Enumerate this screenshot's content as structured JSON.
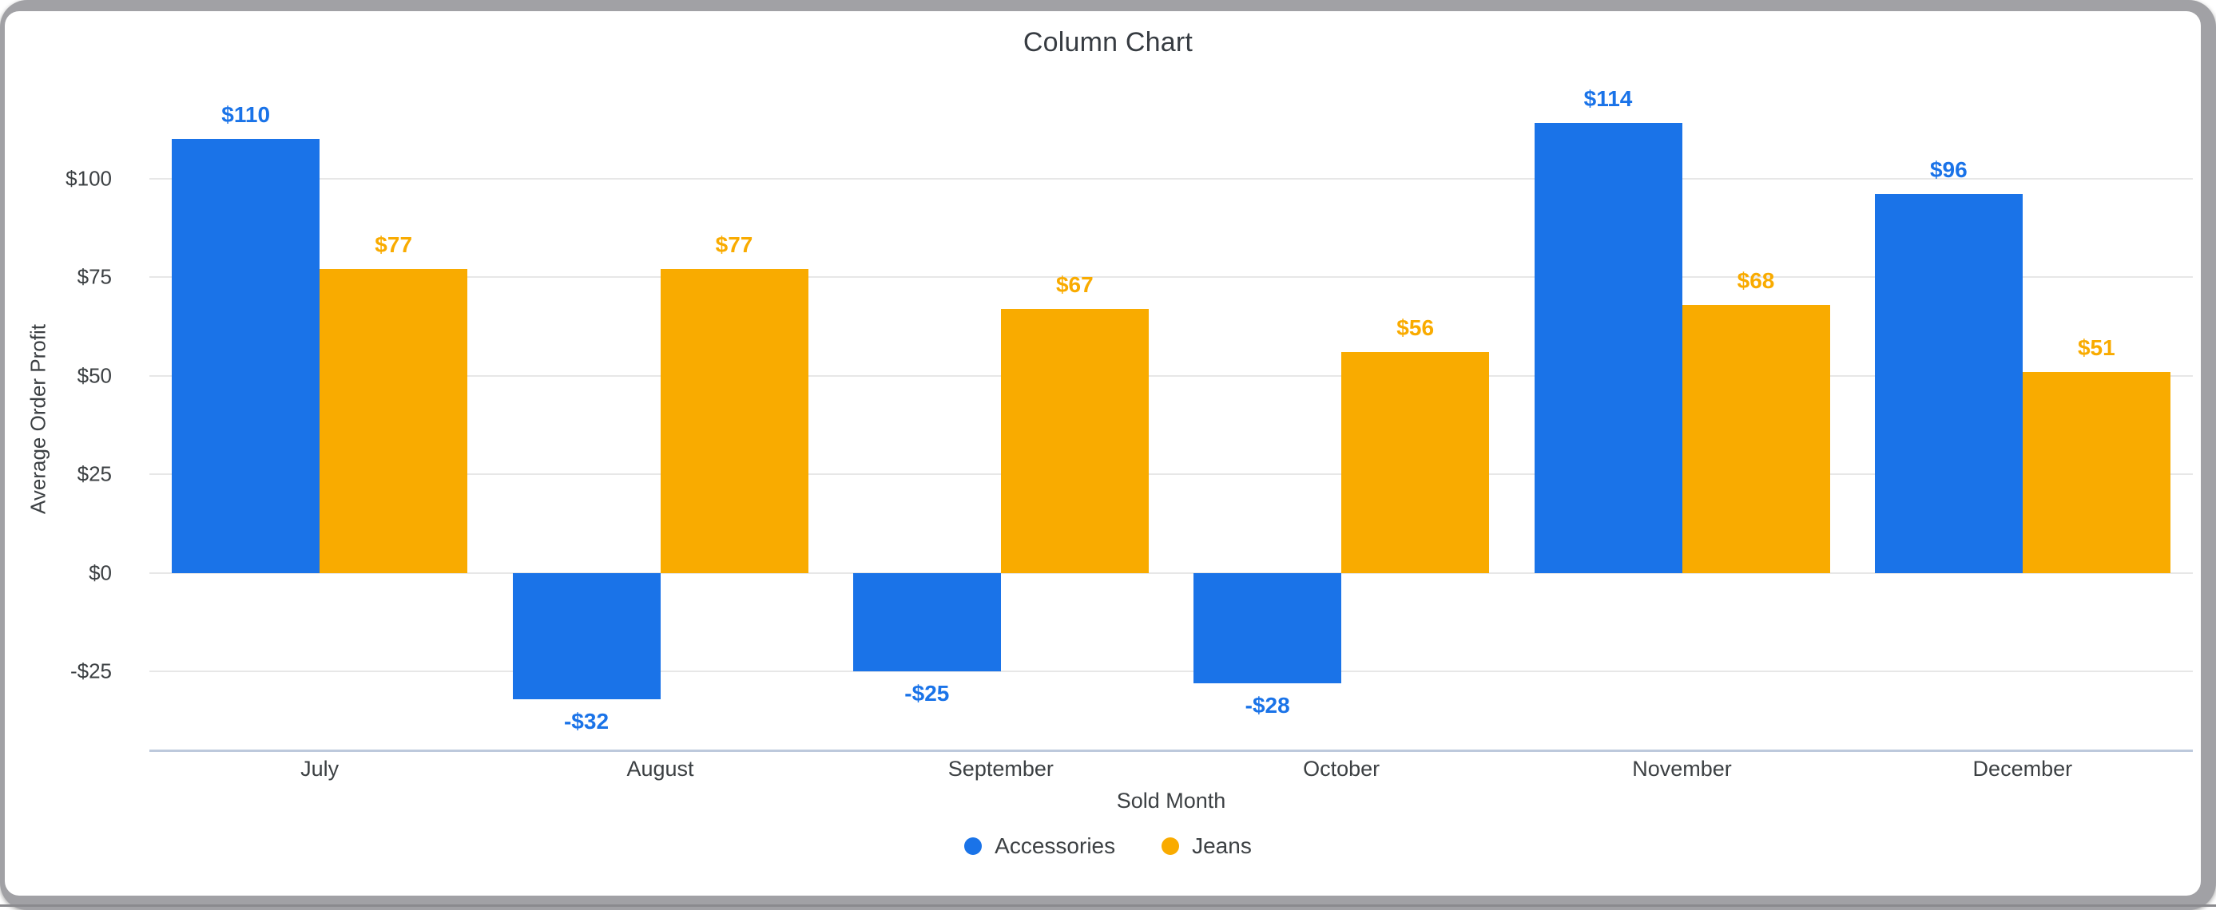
{
  "chart": {
    "title": "Column Chart",
    "y_axis_title": "Average Order Profit",
    "x_axis_title": "Sold Month"
  },
  "chart_data": {
    "type": "bar",
    "title": "Column Chart",
    "xlabel": "Sold Month",
    "ylabel": "Average Order Profit",
    "categories": [
      "July",
      "August",
      "September",
      "October",
      "November",
      "December"
    ],
    "series": [
      {
        "name": "Accessories",
        "color": "#1a73e8",
        "values": [
          110,
          -32,
          -25,
          -28,
          114,
          96
        ],
        "data_labels": [
          "$110",
          "-$32",
          "-$25",
          "-$28",
          "$114",
          "$96"
        ]
      },
      {
        "name": "Jeans",
        "color": "#f9ab00",
        "values": [
          77,
          77,
          67,
          56,
          68,
          51
        ],
        "data_labels": [
          "$77",
          "$77",
          "$67",
          "$56",
          "$68",
          "$51"
        ]
      }
    ],
    "y_ticks": [
      {
        "value": 100,
        "label": "$100"
      },
      {
        "value": 75,
        "label": "$75"
      },
      {
        "value": 50,
        "label": "$50"
      },
      {
        "value": 25,
        "label": "$25"
      },
      {
        "value": 0,
        "label": "$0"
      },
      {
        "value": -25,
        "label": "-$25"
      }
    ],
    "ylim": [
      -45,
      123
    ],
    "grid": true,
    "legend_position": "bottom"
  },
  "legend": {
    "items": [
      {
        "label": "Accessories",
        "color": "#1a73e8"
      },
      {
        "label": "Jeans",
        "color": "#f9ab00"
      }
    ]
  },
  "colors": {
    "accessories_blue": "#1a73e8",
    "jeans_orange": "#f9ab00",
    "grid": "#e7e7e7",
    "axis_baseline": "#bdc9dc",
    "text": "#3c4043",
    "frame_gray": "#a1a1a5"
  }
}
